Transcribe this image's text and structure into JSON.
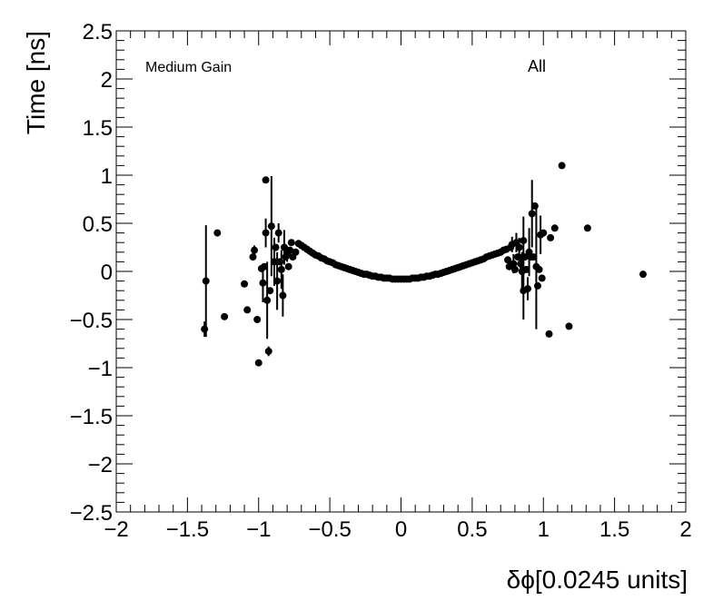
{
  "chart_data": {
    "type": "scatter",
    "title": "",
    "xlabel": "δϕ[0.0245 units]",
    "ylabel": "Time [ns]",
    "xlim": [
      -2,
      2
    ],
    "ylim": [
      -2.5,
      2.5
    ],
    "x_ticks": [
      -2,
      -1.5,
      -1,
      -0.5,
      0,
      0.5,
      1,
      1.5,
      2
    ],
    "x_tick_labels": [
      "−2",
      "−1.5",
      "−1",
      "−0.5",
      "0",
      "0.5",
      "1",
      "1.5",
      "2"
    ],
    "y_ticks": [
      -2.5,
      -2,
      -1.5,
      -1,
      -0.5,
      0,
      0.5,
      1,
      1.5,
      2,
      2.5
    ],
    "y_tick_labels": [
      "−2.5",
      "−2",
      "−1.5",
      "−1",
      "−0.5",
      "0",
      "0.5",
      "1",
      "1.5",
      "2",
      "2.5"
    ],
    "grid": false,
    "marker_color": "#000000",
    "annotations": [
      "Medium Gain",
      "All"
    ],
    "series": [
      {
        "points": [
          {
            "x": -1.38,
            "y": -0.6,
            "err": 0.08
          },
          {
            "x": -1.37,
            "y": -0.1,
            "err": 0.58
          },
          {
            "x": -1.29,
            "y": 0.4,
            "err": 0.0
          },
          {
            "x": -1.24,
            "y": -0.47,
            "err": 0.0
          },
          {
            "x": -1.1,
            "y": -0.13,
            "err": 0.0
          },
          {
            "x": -1.08,
            "y": -0.4,
            "err": 0.0
          },
          {
            "x": -1.04,
            "y": 0.15,
            "err": 0.0
          },
          {
            "x": -1.03,
            "y": 0.22,
            "err": 0.05
          },
          {
            "x": -1.01,
            "y": -0.5,
            "err": 0.0
          },
          {
            "x": -1.0,
            "y": -0.95,
            "err": 0.0
          },
          {
            "x": -0.98,
            "y": 0.03,
            "err": 0.0
          },
          {
            "x": -0.97,
            "y": -0.12,
            "err": 0.2
          },
          {
            "x": -0.96,
            "y": 0.05,
            "err": 0.0
          },
          {
            "x": -0.95,
            "y": 0.4,
            "err": 0.15
          },
          {
            "x": -0.95,
            "y": 0.95,
            "err": 0.0
          },
          {
            "x": -0.94,
            "y": -0.3,
            "err": 0.4
          },
          {
            "x": -0.93,
            "y": -0.83,
            "err": 0.05
          },
          {
            "x": -0.92,
            "y": -0.2,
            "err": 0.0
          },
          {
            "x": -0.91,
            "y": 0.47,
            "err": 0.52
          },
          {
            "x": -0.89,
            "y": 0.1,
            "err": 0.25
          },
          {
            "x": -0.88,
            "y": 0.25,
            "err": 0.0
          },
          {
            "x": -0.87,
            "y": -0.1,
            "err": 0.3
          },
          {
            "x": -0.86,
            "y": 0.4,
            "err": 0.1
          },
          {
            "x": -0.85,
            "y": 0.1,
            "err": 0.0
          },
          {
            "x": -0.84,
            "y": 0.02,
            "err": 0.2
          },
          {
            "x": -0.83,
            "y": -0.25,
            "err": 0.22
          },
          {
            "x": -0.82,
            "y": 0.25,
            "err": 0.18
          },
          {
            "x": -0.81,
            "y": 0.15,
            "err": 0.0
          },
          {
            "x": -0.8,
            "y": 0.18,
            "err": 0.08
          },
          {
            "x": -0.79,
            "y": 0.05,
            "err": 0.0
          },
          {
            "x": -0.78,
            "y": 0.22,
            "err": 0.0
          },
          {
            "x": -0.77,
            "y": 0.3,
            "err": 0.0
          },
          {
            "x": -0.76,
            "y": 0.15,
            "err": 0.0
          },
          {
            "x": -0.74,
            "y": 0.2,
            "err": 0.0
          },
          {
            "x": -0.72,
            "y": 0.29,
            "err": 0.0
          },
          {
            "x": -0.7,
            "y": 0.27,
            "err": 0.0
          },
          {
            "x": -0.68,
            "y": 0.25,
            "err": 0.0
          },
          {
            "x": -0.66,
            "y": 0.23,
            "err": 0.0
          },
          {
            "x": -0.64,
            "y": 0.21,
            "err": 0.0
          },
          {
            "x": -0.62,
            "y": 0.19,
            "err": 0.0
          },
          {
            "x": -0.6,
            "y": 0.17,
            "err": 0.0
          },
          {
            "x": -0.58,
            "y": 0.16,
            "err": 0.0
          },
          {
            "x": -0.56,
            "y": 0.14,
            "err": 0.0
          },
          {
            "x": -0.54,
            "y": 0.13,
            "err": 0.0
          },
          {
            "x": -0.52,
            "y": 0.11,
            "err": 0.0
          },
          {
            "x": -0.5,
            "y": 0.1,
            "err": 0.0
          },
          {
            "x": -0.48,
            "y": 0.09,
            "err": 0.0
          },
          {
            "x": -0.46,
            "y": 0.07,
            "err": 0.0
          },
          {
            "x": -0.44,
            "y": 0.06,
            "err": 0.0
          },
          {
            "x": -0.42,
            "y": 0.05,
            "err": 0.0
          },
          {
            "x": -0.4,
            "y": 0.04,
            "err": 0.0
          },
          {
            "x": -0.38,
            "y": 0.03,
            "err": 0.0
          },
          {
            "x": -0.36,
            "y": 0.02,
            "err": 0.0
          },
          {
            "x": -0.34,
            "y": 0.01,
            "err": 0.0
          },
          {
            "x": -0.32,
            "y": 0.0,
            "err": 0.0
          },
          {
            "x": -0.3,
            "y": -0.01,
            "err": 0.0
          },
          {
            "x": -0.28,
            "y": -0.02,
            "err": 0.0
          },
          {
            "x": -0.26,
            "y": -0.03,
            "err": 0.0
          },
          {
            "x": -0.24,
            "y": -0.03,
            "err": 0.0
          },
          {
            "x": -0.22,
            "y": -0.04,
            "err": 0.0
          },
          {
            "x": -0.2,
            "y": -0.05,
            "err": 0.0
          },
          {
            "x": -0.18,
            "y": -0.05,
            "err": 0.0
          },
          {
            "x": -0.16,
            "y": -0.06,
            "err": 0.0
          },
          {
            "x": -0.14,
            "y": -0.06,
            "err": 0.0
          },
          {
            "x": -0.12,
            "y": -0.07,
            "err": 0.0
          },
          {
            "x": -0.1,
            "y": -0.07,
            "err": 0.0
          },
          {
            "x": -0.08,
            "y": -0.07,
            "err": 0.0
          },
          {
            "x": -0.06,
            "y": -0.08,
            "err": 0.0
          },
          {
            "x": -0.04,
            "y": -0.08,
            "err": 0.0
          },
          {
            "x": -0.02,
            "y": -0.08,
            "err": 0.0
          },
          {
            "x": 0.0,
            "y": -0.08,
            "err": 0.0
          },
          {
            "x": 0.02,
            "y": -0.08,
            "err": 0.0
          },
          {
            "x": 0.04,
            "y": -0.08,
            "err": 0.0
          },
          {
            "x": 0.06,
            "y": -0.08,
            "err": 0.0
          },
          {
            "x": 0.08,
            "y": -0.07,
            "err": 0.0
          },
          {
            "x": 0.1,
            "y": -0.07,
            "err": 0.0
          },
          {
            "x": 0.12,
            "y": -0.07,
            "err": 0.0
          },
          {
            "x": 0.14,
            "y": -0.06,
            "err": 0.0
          },
          {
            "x": 0.16,
            "y": -0.06,
            "err": 0.0
          },
          {
            "x": 0.18,
            "y": -0.05,
            "err": 0.0
          },
          {
            "x": 0.2,
            "y": -0.05,
            "err": 0.0
          },
          {
            "x": 0.22,
            "y": -0.04,
            "err": 0.0
          },
          {
            "x": 0.24,
            "y": -0.03,
            "err": 0.0
          },
          {
            "x": 0.26,
            "y": -0.03,
            "err": 0.0
          },
          {
            "x": 0.28,
            "y": -0.02,
            "err": 0.0
          },
          {
            "x": 0.3,
            "y": -0.01,
            "err": 0.0
          },
          {
            "x": 0.32,
            "y": 0.0,
            "err": 0.0
          },
          {
            "x": 0.34,
            "y": 0.01,
            "err": 0.0
          },
          {
            "x": 0.36,
            "y": 0.02,
            "err": 0.0
          },
          {
            "x": 0.38,
            "y": 0.03,
            "err": 0.0
          },
          {
            "x": 0.4,
            "y": 0.04,
            "err": 0.0
          },
          {
            "x": 0.42,
            "y": 0.05,
            "err": 0.0
          },
          {
            "x": 0.44,
            "y": 0.06,
            "err": 0.0
          },
          {
            "x": 0.46,
            "y": 0.07,
            "err": 0.0
          },
          {
            "x": 0.48,
            "y": 0.08,
            "err": 0.0
          },
          {
            "x": 0.5,
            "y": 0.09,
            "err": 0.0
          },
          {
            "x": 0.52,
            "y": 0.1,
            "err": 0.0
          },
          {
            "x": 0.54,
            "y": 0.11,
            "err": 0.0
          },
          {
            "x": 0.56,
            "y": 0.12,
            "err": 0.0
          },
          {
            "x": 0.58,
            "y": 0.13,
            "err": 0.0
          },
          {
            "x": 0.6,
            "y": 0.15,
            "err": 0.0
          },
          {
            "x": 0.62,
            "y": 0.16,
            "err": 0.0
          },
          {
            "x": 0.64,
            "y": 0.17,
            "err": 0.0
          },
          {
            "x": 0.66,
            "y": 0.18,
            "err": 0.0
          },
          {
            "x": 0.68,
            "y": 0.19,
            "err": 0.0
          },
          {
            "x": 0.7,
            "y": 0.2,
            "err": 0.0
          },
          {
            "x": 0.72,
            "y": 0.22,
            "err": 0.0
          },
          {
            "x": 0.74,
            "y": 0.23,
            "err": 0.0
          },
          {
            "x": 0.75,
            "y": 0.12,
            "err": 0.0
          },
          {
            "x": 0.76,
            "y": 0.05,
            "err": 0.0
          },
          {
            "x": 0.77,
            "y": 0.25,
            "err": 0.0
          },
          {
            "x": 0.78,
            "y": 0.28,
            "err": 0.08
          },
          {
            "x": 0.79,
            "y": 0.08,
            "err": 0.1
          },
          {
            "x": 0.8,
            "y": 0.02,
            "err": 0.0
          },
          {
            "x": 0.81,
            "y": 0.3,
            "err": 0.1
          },
          {
            "x": 0.82,
            "y": 0.15,
            "err": 0.0
          },
          {
            "x": 0.83,
            "y": 0.25,
            "err": 0.1
          },
          {
            "x": 0.84,
            "y": 0.08,
            "err": 0.1
          },
          {
            "x": 0.85,
            "y": 0.0,
            "err": 0.2
          },
          {
            "x": 0.86,
            "y": 0.32,
            "err": 0.25
          },
          {
            "x": 0.86,
            "y": -0.2,
            "err": 0.3
          },
          {
            "x": 0.87,
            "y": 0.15,
            "err": 0.0
          },
          {
            "x": 0.88,
            "y": 0.02,
            "err": 0.0
          },
          {
            "x": 0.89,
            "y": -0.18,
            "err": 0.12
          },
          {
            "x": 0.9,
            "y": 0.2,
            "err": 0.25
          },
          {
            "x": 0.91,
            "y": 0.15,
            "err": 0.0
          },
          {
            "x": 0.92,
            "y": 0.6,
            "err": 0.35
          },
          {
            "x": 0.93,
            "y": 0.15,
            "err": 0.0
          },
          {
            "x": 0.94,
            "y": 0.68,
            "err": 0.0
          },
          {
            "x": 0.95,
            "y": 0.05,
            "err": 0.65
          },
          {
            "x": 0.96,
            "y": -0.15,
            "err": 0.0
          },
          {
            "x": 0.97,
            "y": 0.02,
            "err": 0.0
          },
          {
            "x": 0.98,
            "y": 0.38,
            "err": 0.2
          },
          {
            "x": 0.99,
            "y": -0.07,
            "err": 0.0
          },
          {
            "x": 1.0,
            "y": 0.4,
            "err": 0.0
          },
          {
            "x": 1.04,
            "y": -0.65,
            "err": 0.0
          },
          {
            "x": 1.05,
            "y": 0.35,
            "err": 0.0
          },
          {
            "x": 1.08,
            "y": 0.45,
            "err": 0.0
          },
          {
            "x": 1.13,
            "y": 1.1,
            "err": 0.0
          },
          {
            "x": 1.18,
            "y": -0.57,
            "err": 0.0
          },
          {
            "x": 1.31,
            "y": 0.45,
            "err": 0.0
          },
          {
            "x": 1.7,
            "y": -0.03,
            "err": 0.0
          }
        ]
      }
    ]
  }
}
